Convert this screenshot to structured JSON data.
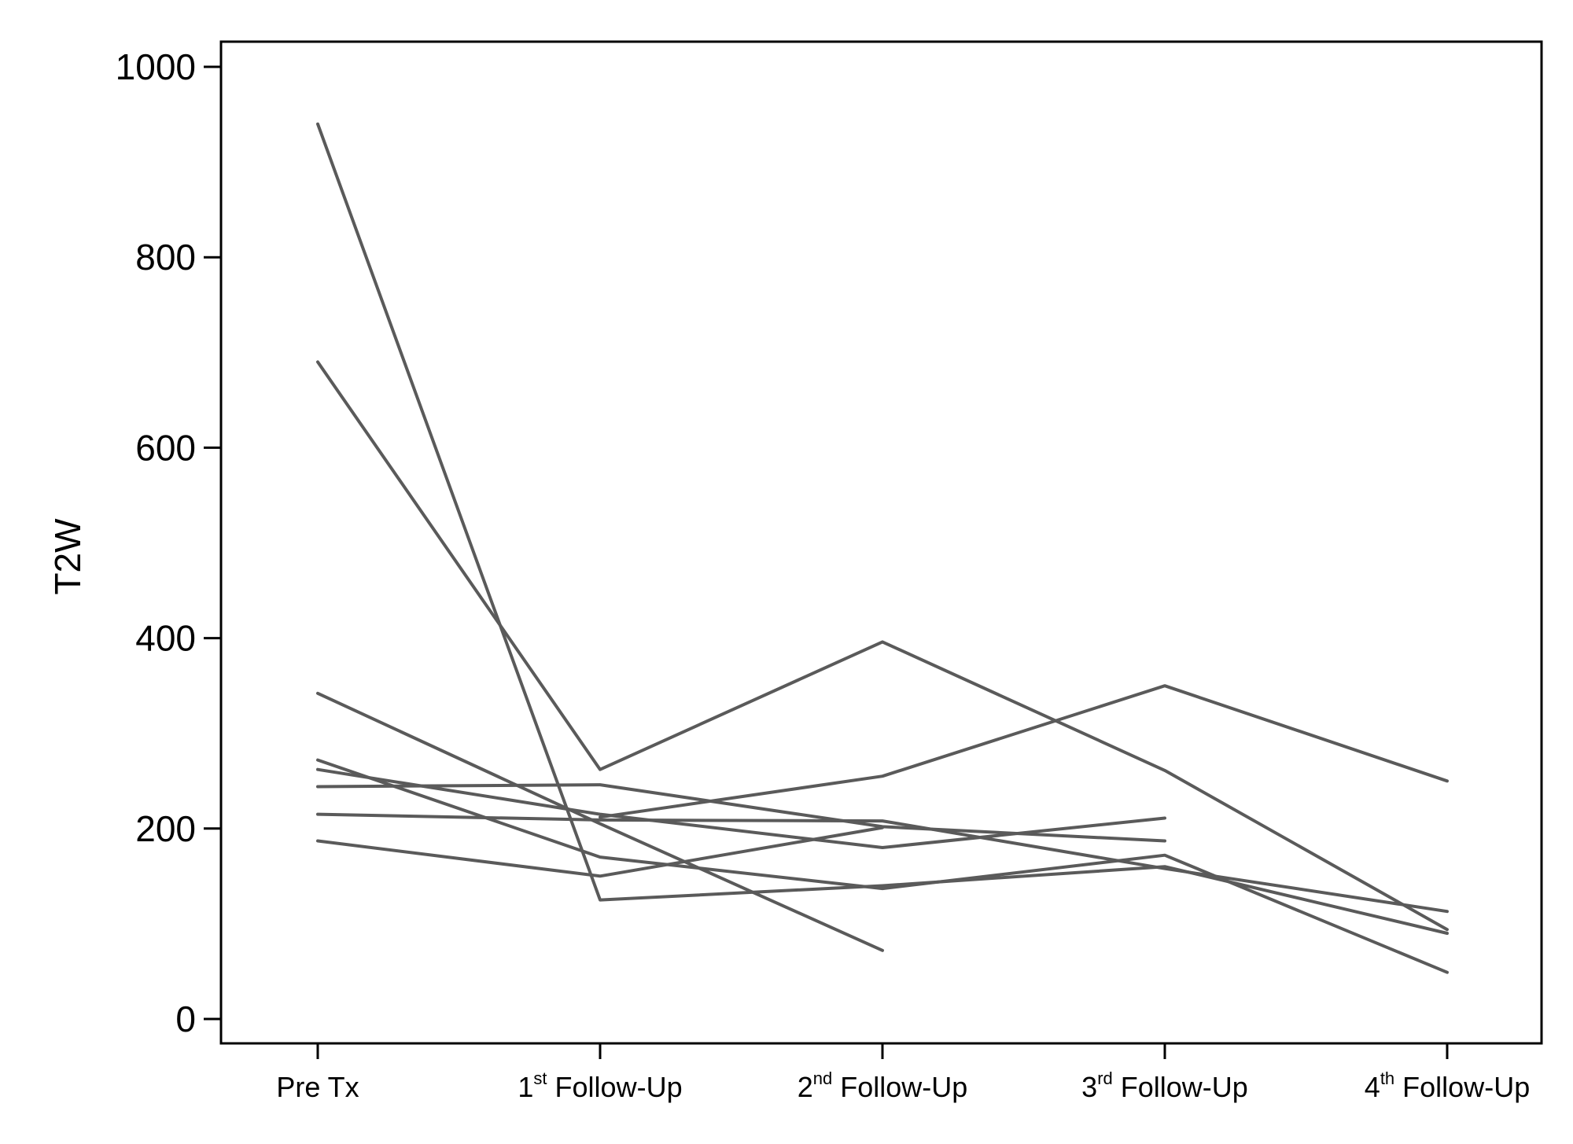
{
  "chart_data": {
    "type": "line",
    "title": "",
    "xlabel": "",
    "ylabel": "T2W",
    "ylim": [
      0,
      1000
    ],
    "yticks": [
      0,
      200,
      400,
      600,
      800,
      1000
    ],
    "grid": false,
    "legend": "none",
    "line_color": "#5a5a5a",
    "categories": [
      {
        "pre": "Pre Tx",
        "sup": "",
        "post": ""
      },
      {
        "pre": "1",
        "sup": "st",
        "post": " Follow-Up"
      },
      {
        "pre": "2",
        "sup": "nd",
        "post": " Follow-Up"
      },
      {
        "pre": "3",
        "sup": "rd",
        "post": " Follow-Up"
      },
      {
        "pre": "4",
        "sup": "th",
        "post": " Follow-Up"
      }
    ],
    "series": [
      {
        "values": [
          940,
          125,
          140,
          160,
          90
        ]
      },
      {
        "values": [
          690,
          262,
          396,
          261,
          94
        ]
      },
      {
        "values": [
          342,
          205,
          72,
          null,
          null
        ]
      },
      {
        "values": [
          272,
          170,
          137,
          172,
          49
        ]
      },
      {
        "values": [
          262,
          215,
          180,
          211,
          null
        ]
      },
      {
        "values": [
          244,
          246,
          202,
          187,
          null
        ]
      },
      {
        "values": [
          215,
          209,
          208,
          158,
          113
        ]
      },
      {
        "values": [
          187,
          150,
          201,
          null,
          null
        ]
      },
      {
        "values": [
          null,
          212,
          255,
          350,
          250
        ]
      }
    ]
  }
}
